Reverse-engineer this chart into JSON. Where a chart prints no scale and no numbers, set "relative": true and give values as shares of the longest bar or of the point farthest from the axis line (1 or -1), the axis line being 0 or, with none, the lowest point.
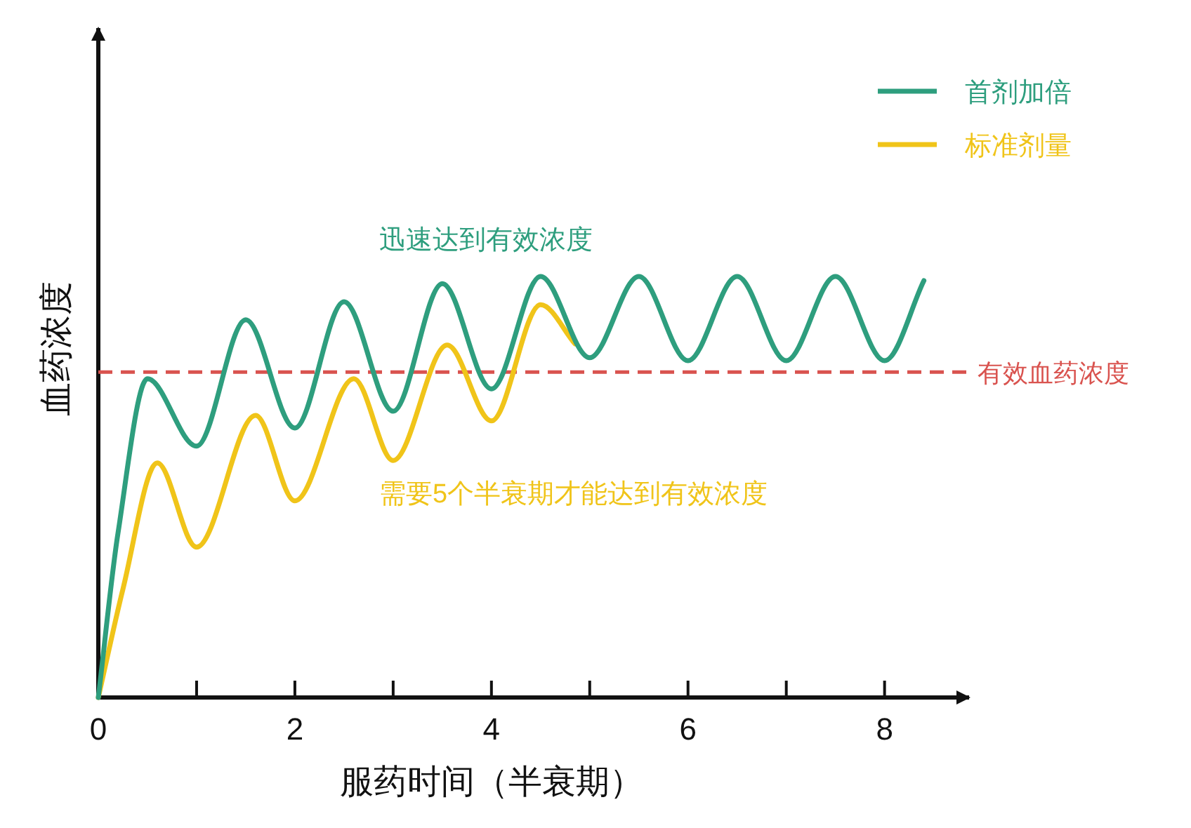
{
  "chart_data": {
    "type": "line",
    "relative": true,
    "xlabel": "服药时间（半衰期）",
    "ylabel": "血药浓度",
    "xlim": [
      0,
      8.86
    ],
    "xticks": [
      0,
      {
        "value": 1,
        "label": null
      },
      2,
      {
        "value": 3,
        "label": null
      },
      4,
      {
        "value": 5,
        "label": null
      },
      6,
      {
        "value": 7,
        "label": null
      },
      8
    ],
    "legend": "top right",
    "series": [
      {
        "name": "首剂加倍",
        "color": "#2e9e7e",
        "x": [
          0,
          0.2,
          0.5,
          1,
          1.5,
          2,
          2.5,
          3,
          3.5,
          4,
          4.5,
          5,
          5.5,
          6,
          6.5,
          7,
          7.5,
          8,
          8.4
        ],
        "values": [
          0,
          0.39,
          0.757,
          0.597,
          0.897,
          0.64,
          0.94,
          0.68,
          0.983,
          0.733,
          1,
          0.807,
          1,
          0.8,
          1,
          0.8,
          1,
          0.8,
          0.99
        ]
      },
      {
        "name": "标准剂量",
        "color": "#f0c419",
        "x": [
          0,
          0.25,
          0.6,
          1,
          1.6,
          2,
          2.6,
          3,
          3.55,
          4,
          4.5,
          4.85
        ],
        "values": [
          0,
          0.257,
          0.557,
          0.357,
          0.67,
          0.467,
          0.757,
          0.563,
          0.837,
          0.657,
          0.933,
          0.84
        ]
      }
    ],
    "ref_lines": [
      {
        "axis": "y",
        "value": 0.773,
        "label": "有效血药浓度",
        "color": "#d9534f",
        "line_style": "dashed"
      }
    ],
    "annotations": [
      "迅速达到有效浓度",
      "需要5个半衰期才能达到有效浓度"
    ]
  }
}
